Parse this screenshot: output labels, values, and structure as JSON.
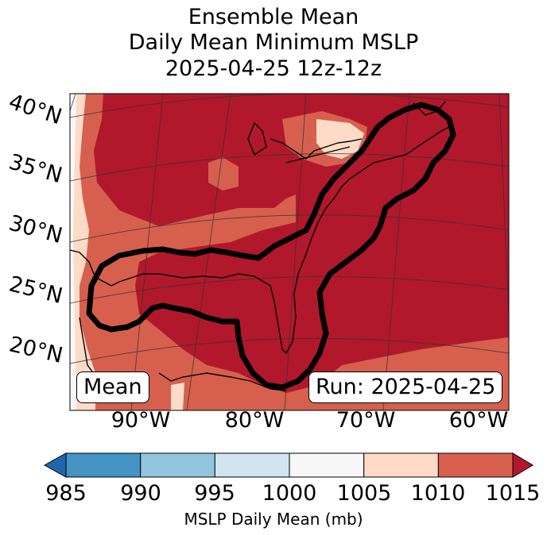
{
  "title": {
    "line1": "Ensemble Mean",
    "line2": "Daily Mean Minimum MSLP",
    "line3": "2025-04-25 12z-12z"
  },
  "map": {
    "lat_labels": [
      "40°N",
      "35°N",
      "30°N",
      "25°N",
      "20°N"
    ],
    "lon_labels": [
      "90°W",
      "80°W",
      "70°W",
      "60°W"
    ],
    "mean_label": "Mean",
    "run_label": "Run: 2025-04-25"
  },
  "colorbar": {
    "ticks": [
      "985",
      "990",
      "995",
      "1000",
      "1005",
      "1010",
      "1015"
    ],
    "label": "MSLP Daily Mean (mb)",
    "colors": [
      "#2166ac",
      "#4393c3",
      "#92c5de",
      "#d1e5f0",
      "#f7f7f7",
      "#fddbc7",
      "#d6604d",
      "#b2182b"
    ]
  }
}
